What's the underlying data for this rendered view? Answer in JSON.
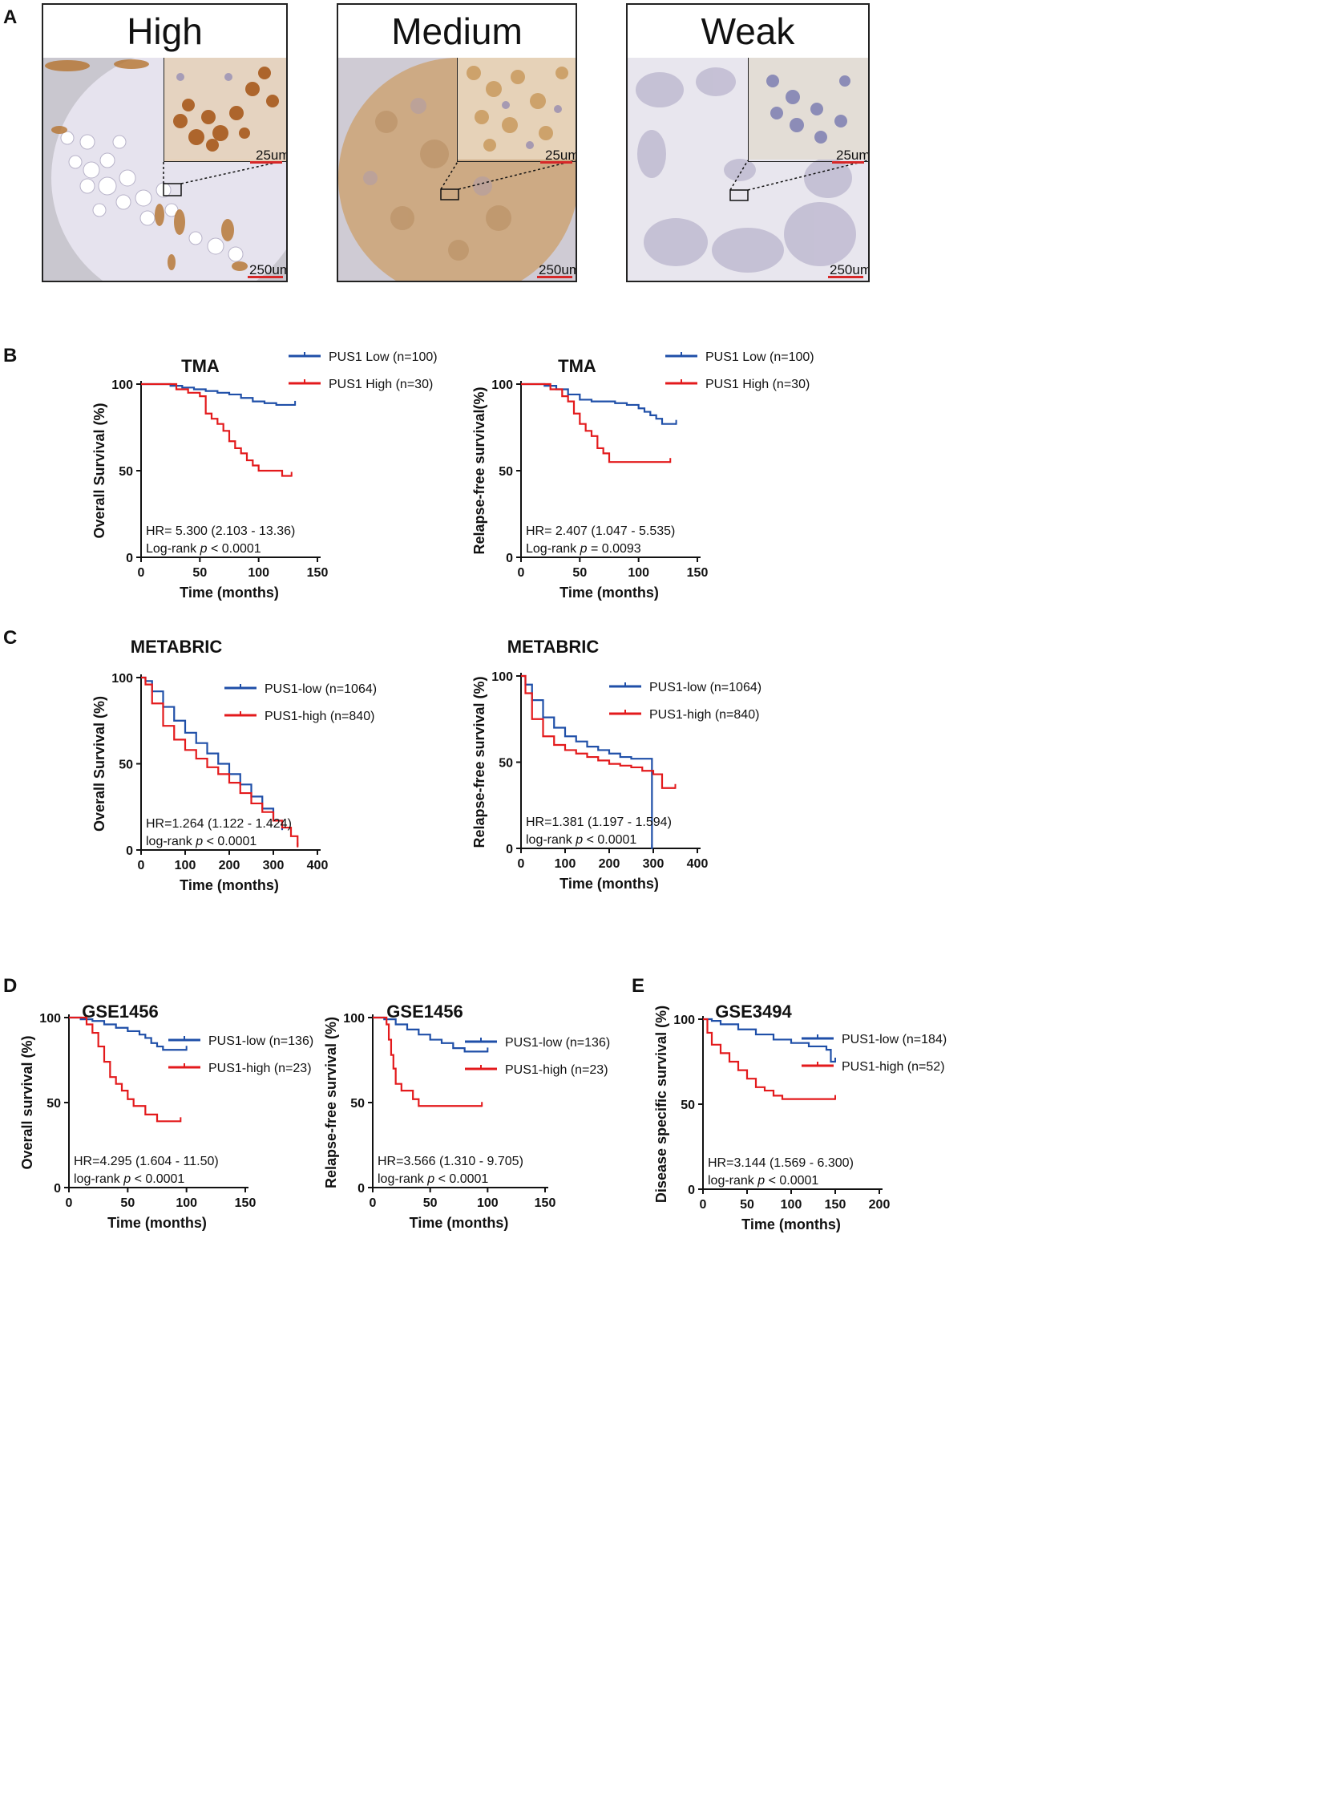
{
  "colors": {
    "low": "#1f4fa8",
    "high": "#e31a1c",
    "axis": "#111111"
  },
  "panel_a": {
    "letter": "A",
    "items": [
      {
        "title": "High",
        "inset_scale": "25um",
        "main_scale": "250um"
      },
      {
        "title": "Medium",
        "inset_scale": "25um",
        "main_scale": "250um"
      },
      {
        "title": "Weak",
        "inset_scale": "25um",
        "main_scale": "250um"
      }
    ]
  },
  "panel_letters": {
    "b": "B",
    "c": "C",
    "d": "D",
    "e": "E"
  },
  "chart_data": [
    {
      "id": "b1",
      "type": "line",
      "title": "TMA",
      "xlabel": "Time (months)",
      "ylabel": "Overall Survival (%)",
      "xlim": [
        0,
        150
      ],
      "ylim": [
        0,
        100
      ],
      "xticks": [
        0,
        50,
        100,
        150
      ],
      "yticks": [
        0,
        50,
        100
      ],
      "hr_text": "HR= 5.300 (2.103 - 13.36)",
      "logrank_prefix": "Log-rank ",
      "logrank_p": "p",
      "logrank_value": " < 0.0001",
      "legend_pos": "top-right",
      "series": [
        {
          "name": "PUS1 Low (n=100)",
          "group": "low",
          "x": [
            0,
            25,
            35,
            45,
            55,
            65,
            75,
            85,
            95,
            105,
            115,
            125,
            131
          ],
          "y": [
            100,
            99,
            98,
            97,
            96,
            95,
            94,
            92,
            90,
            89,
            88,
            88,
            88
          ]
        },
        {
          "name": "PUS1 High (n=30)",
          "group": "high",
          "x": [
            0,
            30,
            40,
            50,
            55,
            60,
            65,
            70,
            75,
            80,
            85,
            90,
            95,
            100,
            110,
            120,
            128
          ],
          "y": [
            100,
            97,
            95,
            93,
            83,
            80,
            77,
            73,
            67,
            63,
            60,
            56,
            53,
            50,
            50,
            47,
            47
          ]
        }
      ]
    },
    {
      "id": "b2",
      "type": "line",
      "title": "TMA",
      "xlabel": "Time (months)",
      "ylabel": "Relapse-free survival(%)",
      "xlim": [
        0,
        150
      ],
      "ylim": [
        0,
        100
      ],
      "xticks": [
        0,
        50,
        100,
        150
      ],
      "yticks": [
        0,
        50,
        100
      ],
      "hr_text": "HR= 2.407 (1.047 - 5.535)",
      "logrank_prefix": "Log-rank ",
      "logrank_p": "p",
      "logrank_value": " = 0.0093",
      "legend_pos": "top-right",
      "series": [
        {
          "name": "PUS1 Low (n=100)",
          "group": "low",
          "x": [
            0,
            20,
            30,
            40,
            50,
            60,
            70,
            80,
            90,
            100,
            105,
            110,
            115,
            120,
            132
          ],
          "y": [
            100,
            99,
            97,
            94,
            91,
            90,
            90,
            89,
            88,
            86,
            84,
            82,
            80,
            77,
            77
          ]
        },
        {
          "name": "PUS1 High (n=30)",
          "group": "high",
          "x": [
            0,
            25,
            35,
            40,
            45,
            50,
            55,
            60,
            65,
            70,
            75,
            90,
            110,
            127
          ],
          "y": [
            100,
            97,
            93,
            90,
            83,
            77,
            73,
            70,
            63,
            60,
            55,
            55,
            55,
            55
          ]
        }
      ]
    },
    {
      "id": "c1",
      "type": "line",
      "title": "METABRIC",
      "xlabel": "Time (months)",
      "ylabel": "Overall Survival (%)",
      "xlim": [
        0,
        400
      ],
      "ylim": [
        0,
        100
      ],
      "xticks": [
        0,
        100,
        200,
        300,
        400
      ],
      "yticks": [
        0,
        50,
        100
      ],
      "hr_text": "HR=1.264 (1.122 - 1.424)",
      "logrank_prefix": "log-rank ",
      "logrank_p": "p",
      "logrank_value": " < 0.0001",
      "legend_pos": "top-right",
      "series": [
        {
          "name": "PUS1-low (n=1064)",
          "group": "low",
          "x": [
            0,
            10,
            25,
            50,
            75,
            100,
            125,
            150,
            175,
            200,
            225,
            250,
            275,
            300,
            320
          ],
          "y": [
            100,
            98,
            92,
            83,
            75,
            68,
            62,
            56,
            50,
            44,
            38,
            31,
            24,
            17,
            12
          ]
        },
        {
          "name": "PUS1-high (n=840)",
          "group": "high",
          "x": [
            0,
            10,
            25,
            50,
            75,
            100,
            125,
            150,
            175,
            200,
            225,
            250,
            275,
            300,
            320,
            340,
            355
          ],
          "y": [
            100,
            96,
            85,
            72,
            64,
            58,
            53,
            48,
            44,
            39,
            33,
            27,
            22,
            17,
            13,
            8,
            2
          ]
        }
      ]
    },
    {
      "id": "c2",
      "type": "line",
      "title": "METABRIC",
      "xlabel": "Time (months)",
      "ylabel": "Relapse-free survival (%)",
      "xlim": [
        0,
        400
      ],
      "ylim": [
        0,
        100
      ],
      "xticks": [
        0,
        100,
        200,
        300,
        400
      ],
      "yticks": [
        0,
        50,
        100
      ],
      "hr_text": "HR=1.381 (1.197 - 1.594)",
      "logrank_prefix": "log-rank ",
      "logrank_p": "p",
      "logrank_value": " < 0.0001",
      "legend_pos": "top-right",
      "series": [
        {
          "name": "PUS1-low (n=1064)",
          "group": "low",
          "x": [
            0,
            10,
            25,
            50,
            75,
            100,
            125,
            150,
            175,
            200,
            225,
            250,
            275,
            296,
            297
          ],
          "y": [
            100,
            95,
            86,
            76,
            70,
            65,
            62,
            59,
            57,
            55,
            53,
            52,
            52,
            52,
            0
          ]
        },
        {
          "name": "PUS1-high (n=840)",
          "group": "high",
          "x": [
            0,
            10,
            25,
            50,
            75,
            100,
            125,
            150,
            175,
            200,
            225,
            250,
            275,
            300,
            320,
            350
          ],
          "y": [
            100,
            90,
            75,
            65,
            60,
            57,
            55,
            53,
            51,
            49,
            48,
            47,
            45,
            43,
            35,
            35
          ]
        }
      ]
    },
    {
      "id": "d1",
      "type": "line",
      "title": "GSE1456",
      "xlabel": "Time (months)",
      "ylabel": "Overall survival (%)",
      "xlim": [
        0,
        150
      ],
      "ylim": [
        0,
        100
      ],
      "xticks": [
        0,
        50,
        100,
        150
      ],
      "yticks": [
        0,
        50,
        100
      ],
      "hr_text": "HR=4.295 (1.604 - 11.50)",
      "logrank_prefix": "log-rank ",
      "logrank_p": "p",
      "logrank_value": " < 0.0001",
      "legend_pos": "top-right",
      "series": [
        {
          "name": "PUS1-low (n=136)",
          "group": "low",
          "x": [
            0,
            10,
            20,
            30,
            40,
            50,
            60,
            65,
            70,
            75,
            80,
            90,
            100
          ],
          "y": [
            100,
            99,
            98,
            96,
            94,
            92,
            90,
            88,
            85,
            83,
            81,
            81,
            81
          ]
        },
        {
          "name": "PUS1-high (n=23)",
          "group": "high",
          "x": [
            0,
            15,
            20,
            25,
            30,
            35,
            40,
            45,
            50,
            55,
            60,
            65,
            70,
            75,
            80,
            90,
            95
          ],
          "y": [
            100,
            96,
            91,
            83,
            74,
            65,
            61,
            57,
            52,
            48,
            48,
            43,
            43,
            39,
            39,
            39,
            39
          ]
        }
      ]
    },
    {
      "id": "d2",
      "type": "line",
      "title": "GSE1456",
      "xlabel": "Time (months)",
      "ylabel": "Relapse-free survival (%)",
      "xlim": [
        0,
        150
      ],
      "ylim": [
        0,
        100
      ],
      "xticks": [
        0,
        50,
        100,
        150
      ],
      "yticks": [
        0,
        50,
        100
      ],
      "hr_text": "HR=3.566 (1.310 - 9.705)",
      "logrank_prefix": "log-rank ",
      "logrank_p": "p",
      "logrank_value": " < 0.0001",
      "legend_pos": "top-right",
      "series": [
        {
          "name": "PUS1-low (n=136)",
          "group": "low",
          "x": [
            0,
            10,
            20,
            30,
            40,
            50,
            60,
            70,
            80,
            90,
            100
          ],
          "y": [
            100,
            99,
            96,
            93,
            90,
            87,
            85,
            82,
            80,
            80,
            80
          ]
        },
        {
          "name": "PUS1-high (n=23)",
          "group": "high",
          "x": [
            0,
            12,
            14,
            16,
            18,
            20,
            25,
            30,
            35,
            40,
            60,
            80,
            95
          ],
          "y": [
            100,
            96,
            87,
            78,
            70,
            61,
            57,
            57,
            52,
            48,
            48,
            48,
            48
          ]
        }
      ]
    },
    {
      "id": "e1",
      "type": "line",
      "title": "GSE3494",
      "xlabel": "Time (months)",
      "ylabel": "Disease specific survival (%)",
      "xlim": [
        0,
        200
      ],
      "ylim": [
        0,
        100
      ],
      "xticks": [
        0,
        50,
        100,
        150,
        200
      ],
      "yticks": [
        0,
        50,
        100
      ],
      "hr_text": "HR=3.144 (1.569 - 6.300)",
      "logrank_prefix": "log-rank ",
      "logrank_p": "p",
      "logrank_value": " < 0.0001",
      "legend_pos": "top-right",
      "series": [
        {
          "name": "PUS1-low (n=184)",
          "group": "low",
          "x": [
            0,
            10,
            20,
            40,
            60,
            80,
            100,
            120,
            140,
            145,
            150
          ],
          "y": [
            100,
            99,
            97,
            94,
            91,
            88,
            86,
            84,
            82,
            75,
            75
          ]
        },
        {
          "name": "PUS1-high (n=52)",
          "group": "high",
          "x": [
            0,
            5,
            10,
            20,
            30,
            40,
            50,
            60,
            70,
            80,
            90,
            100,
            110,
            150
          ],
          "y": [
            100,
            92,
            85,
            80,
            75,
            70,
            65,
            60,
            58,
            55,
            53,
            53,
            53,
            53
          ]
        }
      ]
    }
  ]
}
